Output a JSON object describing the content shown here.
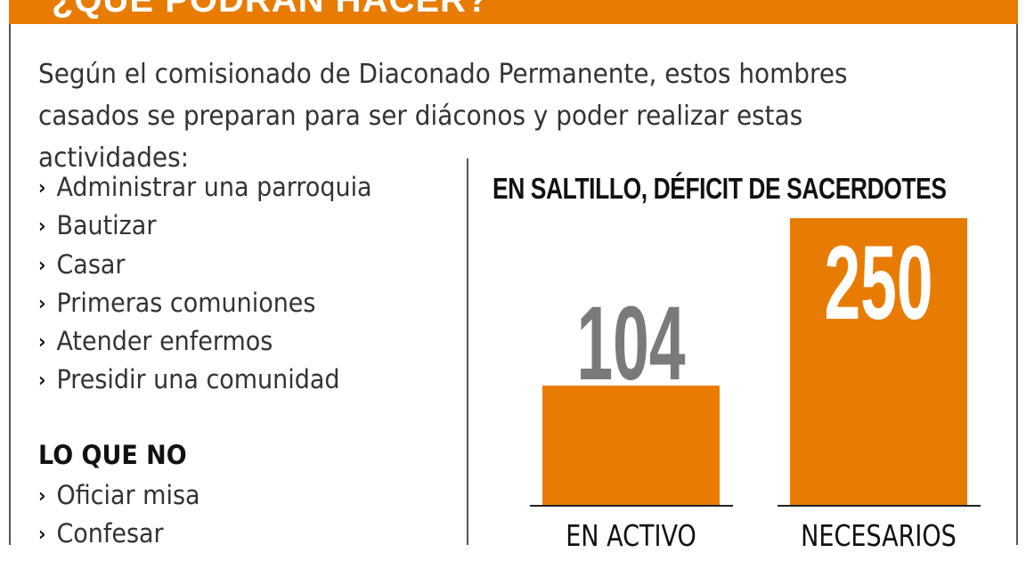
{
  "header": {
    "title": "¿QUÉ PODRÁN HACER?"
  },
  "intro": "Según el comisionado de Diaconado Permanente, estos hombres casados se preparan para ser diáconos y poder realizar estas actividades:",
  "can_do": [
    "Administrar una parroquia",
    "Bautizar",
    "Casar",
    "Primeras comuniones",
    "Atender enfermos",
    "Presidir una comunidad"
  ],
  "cannot": {
    "title": "LO QUE NO",
    "items": [
      "Oficiar misa",
      "Confesar"
    ]
  },
  "bullet_icon": "chevron-right-icon",
  "colors": {
    "accent": "#e87c03",
    "value_gray": "#7a7a7a"
  },
  "chart_data": {
    "type": "bar",
    "title": "EN SALTILLO, DÉFICIT DE SACERDOTES",
    "categories": [
      "EN ACTIVO",
      "NECESARIOS"
    ],
    "values": [
      104,
      250
    ],
    "data_labels": [
      "104",
      "250"
    ],
    "grid": false,
    "legend": "none"
  }
}
